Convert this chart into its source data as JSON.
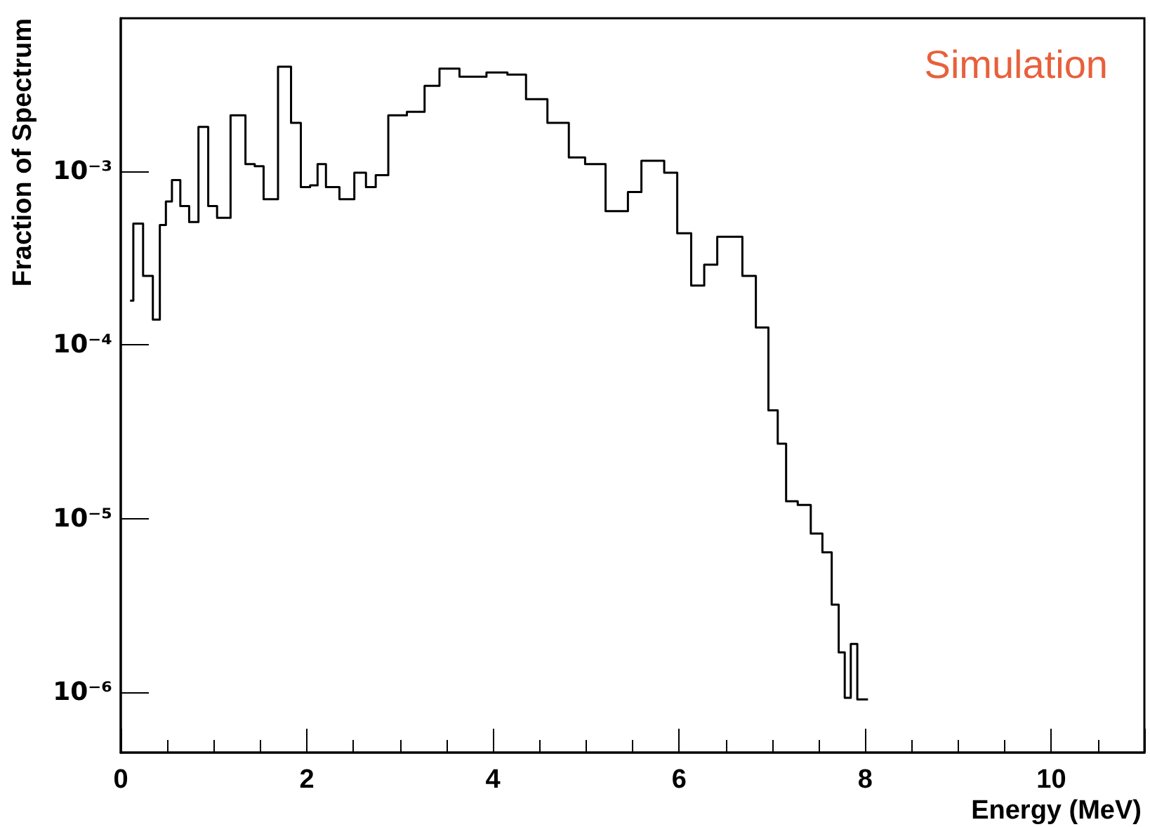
{
  "chart_data": {
    "type": "step",
    "xlabel": "Energy (MeV)",
    "ylabel": "Fraction of Spectrum",
    "annotations": [
      "Simulation"
    ],
    "log": "y",
    "grid": false,
    "marker": "none",
    "line_style": "solid",
    "xlim": [
      0,
      11
    ],
    "xticks": [
      0,
      2,
      4,
      6,
      8,
      10
    ],
    "ylim": [
      4.5e-07,
      0.0076
    ],
    "yticks": [
      {
        "value": 1e-06,
        "label": "10⁻⁶"
      },
      {
        "value": 1e-05,
        "label": "10⁻⁵"
      },
      {
        "value": 0.0001,
        "label": "10⁻⁴"
      },
      {
        "value": 0.001,
        "label": "10⁻³"
      }
    ],
    "series": [
      {
        "color": "#000000",
        "x": [
          0.1,
          0.17,
          0.31,
          0.38,
          0.46,
          0.51,
          0.59,
          0.69,
          0.78,
          0.89,
          0.99,
          1.08,
          1.28,
          1.4,
          1.48,
          1.59,
          1.79,
          1.87,
          2.0,
          2.07,
          2.16,
          2.25,
          2.45,
          2.57,
          2.7,
          2.78,
          2.97,
          3.18,
          3.35,
          3.5,
          3.78,
          4.08,
          4.23,
          4.48,
          4.69,
          4.94,
          5.04,
          5.38,
          5.52,
          5.67,
          5.79,
          5.89,
          6.07,
          6.19,
          6.35,
          6.47,
          6.61,
          6.75,
          6.9,
          7.02,
          7.1,
          7.2,
          7.35,
          7.48,
          7.6,
          7.68,
          7.75,
          7.81,
          7.88,
          7.95,
          8.03
        ],
        "values": [
          0.00018,
          0.0005,
          0.00025,
          0.00014,
          0.00049,
          0.00067,
          0.00089,
          0.00063,
          0.00051,
          0.0018,
          0.00063,
          0.00054,
          0.0021,
          0.0011,
          0.00107,
          0.00069,
          0.004,
          0.0019,
          0.00081,
          0.00083,
          0.0011,
          0.00081,
          0.00069,
          0.00098,
          0.00081,
          0.00095,
          0.0021,
          0.0022,
          0.0031,
          0.0039,
          0.0035,
          0.0037,
          0.0036,
          0.0026,
          0.0019,
          0.0012,
          0.0011,
          0.00059,
          0.00076,
          0.00115,
          0.00115,
          0.00098,
          0.00044,
          0.00022,
          0.00029,
          0.00042,
          0.00042,
          0.00025,
          0.000126,
          4.2e-05,
          2.7e-05,
          1.26e-05,
          1.2e-05,
          8.2e-06,
          6.4e-06,
          3.2e-06,
          1.7e-06,
          9.3e-07,
          1.9e-06,
          9.1e-07,
          9.1e-07
        ]
      }
    ]
  }
}
